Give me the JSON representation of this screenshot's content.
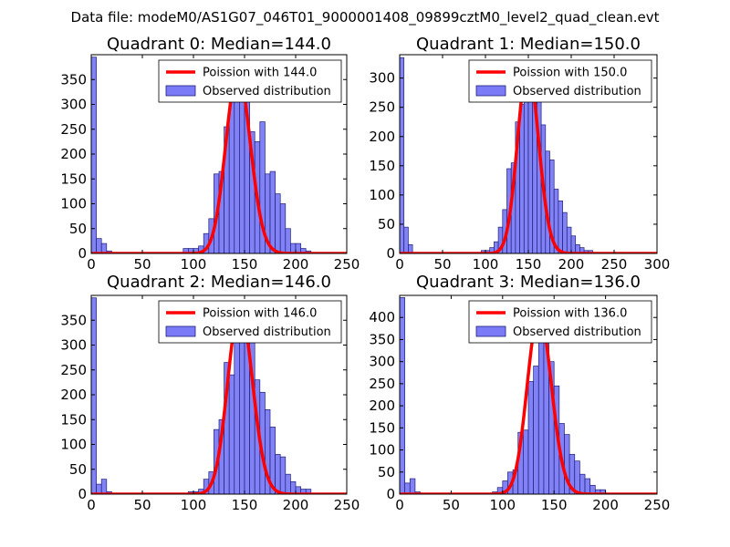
{
  "figure": {
    "suptitle": "Data file: modeM0/AS1G07_046T01_9000001408_09899cztM0_level2_quad_clean.evt",
    "colors": {
      "bar": "#7b7bf7",
      "bar_edge": "#1f1f78",
      "line": "#ff0000",
      "axes": "#000000",
      "background": "#ffffff"
    }
  },
  "chart_data": [
    {
      "type": "bar",
      "title": "Quadrant 0: Median=144.0",
      "xlabel": "",
      "ylabel": "",
      "xlim": [
        0,
        250
      ],
      "ylim": [
        0,
        400
      ],
      "xticks": [
        0,
        50,
        100,
        150,
        200,
        250
      ],
      "yticks": [
        0,
        50,
        100,
        150,
        200,
        250,
        300,
        350
      ],
      "legend": {
        "position": "top-right",
        "line_label": "Poission with 144.0",
        "bar_label": "Observed distribution"
      },
      "poisson_mean": 144.0,
      "poisson_scale": 365,
      "bin_width": 5,
      "bins": [
        {
          "x": 0,
          "count": 395
        },
        {
          "x": 5,
          "count": 30
        },
        {
          "x": 10,
          "count": 20
        },
        {
          "x": 15,
          "count": 5
        },
        {
          "x": 90,
          "count": 10
        },
        {
          "x": 95,
          "count": 10
        },
        {
          "x": 100,
          "count": 10
        },
        {
          "x": 105,
          "count": 15
        },
        {
          "x": 110,
          "count": 40
        },
        {
          "x": 115,
          "count": 70
        },
        {
          "x": 120,
          "count": 160
        },
        {
          "x": 125,
          "count": 165
        },
        {
          "x": 130,
          "count": 255
        },
        {
          "x": 135,
          "count": 325
        },
        {
          "x": 140,
          "count": 335
        },
        {
          "x": 145,
          "count": 325
        },
        {
          "x": 150,
          "count": 350
        },
        {
          "x": 155,
          "count": 245
        },
        {
          "x": 160,
          "count": 225
        },
        {
          "x": 165,
          "count": 265
        },
        {
          "x": 170,
          "count": 160
        },
        {
          "x": 175,
          "count": 165
        },
        {
          "x": 180,
          "count": 120
        },
        {
          "x": 185,
          "count": 100
        },
        {
          "x": 190,
          "count": 50
        },
        {
          "x": 195,
          "count": 20
        },
        {
          "x": 200,
          "count": 20
        },
        {
          "x": 205,
          "count": 10
        },
        {
          "x": 210,
          "count": 5
        }
      ]
    },
    {
      "type": "bar",
      "title": "Quadrant 1: Median=150.0",
      "xlabel": "",
      "ylabel": "",
      "xlim": [
        0,
        300
      ],
      "ylim": [
        0,
        340
      ],
      "xticks": [
        0,
        50,
        100,
        150,
        200,
        250,
        300
      ],
      "yticks": [
        0,
        50,
        100,
        150,
        200,
        250,
        300
      ],
      "legend": {
        "position": "top-right",
        "line_label": "Poission with 150.0",
        "bar_label": "Observed distribution"
      },
      "poisson_mean": 150.0,
      "poisson_scale": 320,
      "bin_width": 5,
      "bins": [
        {
          "x": 0,
          "count": 335
        },
        {
          "x": 5,
          "count": 45
        },
        {
          "x": 10,
          "count": 15
        },
        {
          "x": 95,
          "count": 5
        },
        {
          "x": 100,
          "count": 5
        },
        {
          "x": 105,
          "count": 10
        },
        {
          "x": 110,
          "count": 20
        },
        {
          "x": 115,
          "count": 45
        },
        {
          "x": 120,
          "count": 75
        },
        {
          "x": 125,
          "count": 145
        },
        {
          "x": 130,
          "count": 155
        },
        {
          "x": 135,
          "count": 225
        },
        {
          "x": 140,
          "count": 255
        },
        {
          "x": 145,
          "count": 285
        },
        {
          "x": 150,
          "count": 315
        },
        {
          "x": 155,
          "count": 285
        },
        {
          "x": 160,
          "count": 265
        },
        {
          "x": 165,
          "count": 220
        },
        {
          "x": 170,
          "count": 175
        },
        {
          "x": 175,
          "count": 160
        },
        {
          "x": 180,
          "count": 110
        },
        {
          "x": 185,
          "count": 90
        },
        {
          "x": 190,
          "count": 70
        },
        {
          "x": 195,
          "count": 45
        },
        {
          "x": 200,
          "count": 30
        },
        {
          "x": 205,
          "count": 15
        },
        {
          "x": 210,
          "count": 10
        },
        {
          "x": 215,
          "count": 5
        },
        {
          "x": 220,
          "count": 5
        }
      ]
    },
    {
      "type": "bar",
      "title": "Quadrant 2: Median=146.0",
      "xlabel": "",
      "ylabel": "",
      "xlim": [
        0,
        250
      ],
      "ylim": [
        0,
        400
      ],
      "xticks": [
        0,
        50,
        100,
        150,
        200,
        250
      ],
      "yticks": [
        0,
        50,
        100,
        150,
        200,
        250,
        300,
        350
      ],
      "legend": {
        "position": "top-right",
        "line_label": "Poission with 146.0",
        "bar_label": "Observed distribution"
      },
      "poisson_mean": 146.0,
      "poisson_scale": 375,
      "bin_width": 5,
      "bins": [
        {
          "x": 0,
          "count": 395
        },
        {
          "x": 5,
          "count": 20
        },
        {
          "x": 10,
          "count": 30
        },
        {
          "x": 15,
          "count": 5
        },
        {
          "x": 95,
          "count": 5
        },
        {
          "x": 100,
          "count": 5
        },
        {
          "x": 105,
          "count": 10
        },
        {
          "x": 110,
          "count": 30
        },
        {
          "x": 115,
          "count": 45
        },
        {
          "x": 120,
          "count": 130
        },
        {
          "x": 125,
          "count": 150
        },
        {
          "x": 130,
          "count": 265
        },
        {
          "x": 135,
          "count": 240
        },
        {
          "x": 140,
          "count": 355
        },
        {
          "x": 145,
          "count": 355
        },
        {
          "x": 150,
          "count": 360
        },
        {
          "x": 155,
          "count": 310
        },
        {
          "x": 160,
          "count": 230
        },
        {
          "x": 165,
          "count": 205
        },
        {
          "x": 170,
          "count": 170
        },
        {
          "x": 175,
          "count": 135
        },
        {
          "x": 180,
          "count": 80
        },
        {
          "x": 185,
          "count": 75
        },
        {
          "x": 190,
          "count": 40
        },
        {
          "x": 195,
          "count": 25
        },
        {
          "x": 200,
          "count": 15
        },
        {
          "x": 205,
          "count": 10
        },
        {
          "x": 210,
          "count": 10
        }
      ]
    },
    {
      "type": "bar",
      "title": "Quadrant 3: Median=136.0",
      "xlabel": "",
      "ylabel": "",
      "xlim": [
        0,
        250
      ],
      "ylim": [
        0,
        450
      ],
      "xticks": [
        0,
        50,
        100,
        150,
        200,
        250
      ],
      "yticks": [
        0,
        50,
        100,
        150,
        200,
        250,
        300,
        350,
        400
      ],
      "legend": {
        "position": "top-right",
        "line_label": "Poission with 136.0",
        "bar_label": "Observed distribution"
      },
      "poisson_mean": 136.0,
      "poisson_scale": 410,
      "bin_width": 5,
      "bins": [
        {
          "x": 0,
          "count": 445
        },
        {
          "x": 5,
          "count": 25
        },
        {
          "x": 10,
          "count": 35
        },
        {
          "x": 15,
          "count": 5
        },
        {
          "x": 90,
          "count": 5
        },
        {
          "x": 95,
          "count": 15
        },
        {
          "x": 100,
          "count": 30
        },
        {
          "x": 105,
          "count": 50
        },
        {
          "x": 110,
          "count": 55
        },
        {
          "x": 115,
          "count": 140
        },
        {
          "x": 120,
          "count": 145
        },
        {
          "x": 125,
          "count": 255
        },
        {
          "x": 130,
          "count": 290
        },
        {
          "x": 135,
          "count": 405
        },
        {
          "x": 140,
          "count": 360
        },
        {
          "x": 145,
          "count": 300
        },
        {
          "x": 150,
          "count": 245
        },
        {
          "x": 155,
          "count": 160
        },
        {
          "x": 160,
          "count": 135
        },
        {
          "x": 165,
          "count": 90
        },
        {
          "x": 170,
          "count": 75
        },
        {
          "x": 175,
          "count": 45
        },
        {
          "x": 180,
          "count": 35
        },
        {
          "x": 185,
          "count": 20
        },
        {
          "x": 190,
          "count": 10
        },
        {
          "x": 195,
          "count": 10
        }
      ]
    }
  ]
}
